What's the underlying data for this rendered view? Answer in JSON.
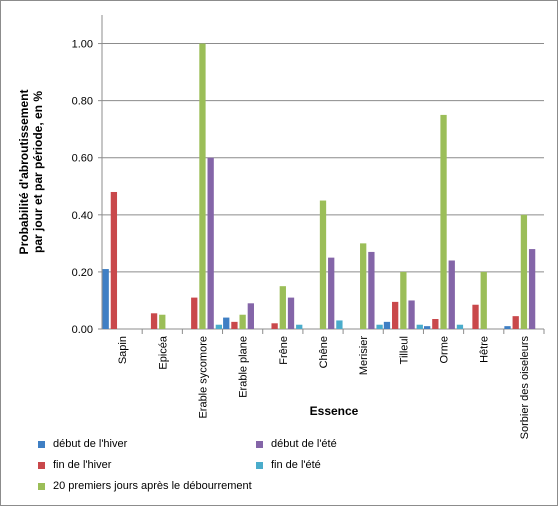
{
  "chart_data": {
    "type": "bar",
    "title": "",
    "xlabel": "Essence",
    "ylabel_lines": [
      "Probabilité d'abroutissement",
      "par jour et par période, en %"
    ],
    "ylim": [
      0,
      1.1
    ],
    "yticks": [
      0,
      0.2,
      0.4,
      0.6,
      0.8,
      1.0
    ],
    "ytick_labels": [
      "0.00",
      "0.20",
      "0.40",
      "0.60",
      "0.80",
      "1.00"
    ],
    "grid": true,
    "legend_position": "bottom",
    "categories": [
      "Sapin",
      "Epicéa",
      "Erable sycomore",
      "Erable plane",
      "Frêne",
      "Chêne",
      "Merisier",
      "Tilleul",
      "Orme",
      "Hêtre",
      "Sorbier des oiseleurs"
    ],
    "series": [
      {
        "name": "début de l'hiver",
        "color": "#3f7fc4",
        "values": [
          0.21,
          0,
          0,
          0.04,
          0,
          0,
          0,
          0.025,
          0.01,
          0,
          0.01
        ]
      },
      {
        "name": "fin de l'hiver",
        "color": "#c9484b",
        "values": [
          0.48,
          0.055,
          0.11,
          0.025,
          0.02,
          0,
          0,
          0.095,
          0.035,
          0.085,
          0.045
        ]
      },
      {
        "name": "20 premiers jours après le débourrement",
        "color": "#9bbe58",
        "values": [
          0,
          0.05,
          1.0,
          0.05,
          0.15,
          0.45,
          0.3,
          0.2,
          0.75,
          0.2,
          0.4
        ]
      },
      {
        "name": "début de l'été",
        "color": "#8465a8",
        "values": [
          0,
          0,
          0.6,
          0.09,
          0.11,
          0.25,
          0.27,
          0.1,
          0.24,
          0,
          0.28
        ]
      },
      {
        "name": "fin de l'été",
        "color": "#4aaccb",
        "values": [
          0,
          0,
          0.015,
          0,
          0.015,
          0.03,
          0.015,
          0.015,
          0.015,
          0,
          0
        ]
      }
    ]
  },
  "legend": {
    "items": [
      {
        "label": "début de l'hiver",
        "color": "#3f7fc4"
      },
      {
        "label": "début de l'été",
        "color": "#8465a8"
      },
      {
        "label": "fin de l'hiver",
        "color": "#c9484b"
      },
      {
        "label": "fin de l'été",
        "color": "#4aaccb"
      },
      {
        "label": "20 premiers jours après le débourrement",
        "color": "#9bbe58"
      }
    ]
  }
}
